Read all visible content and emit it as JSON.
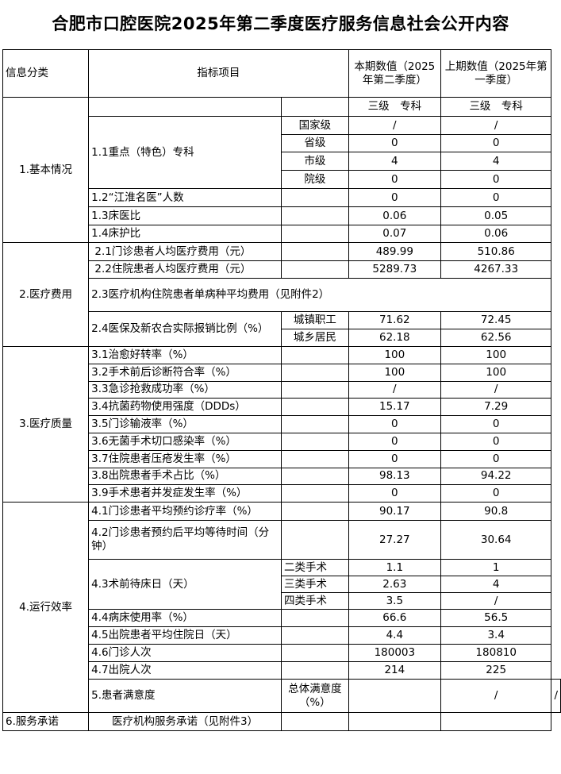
{
  "title": "合肥市口腔医院2025年第二季度医疗服务信息社会公开内容",
  "header": {
    "category": "信息分类",
    "indicator": "指标项目",
    "current": "本期数值（2025年第二季度）",
    "previous": "上期数值（2025年第一季度）",
    "level_current": "三级　专科",
    "level_previous": "三级　专科"
  },
  "sections": {
    "s1": "1.基本情况",
    "s2": "2.医疗费用",
    "s3": "3.医疗质量",
    "s4": "4.运行效率",
    "s5": "5.患者满意度",
    "s6": "6.服务承诺"
  },
  "rows": {
    "r11": {
      "label": "1.1重点（特色）专科",
      "subs": [
        {
          "sub": "国家级",
          "cur": "/",
          "prev": "/"
        },
        {
          "sub": "省级",
          "cur": "0",
          "prev": "0"
        },
        {
          "sub": "市级",
          "cur": "4",
          "prev": "4"
        },
        {
          "sub": "院级",
          "cur": "0",
          "prev": "0"
        }
      ]
    },
    "r12": {
      "label": "1.2“江淮名医”人数",
      "cur": "0",
      "prev": "0"
    },
    "r13": {
      "label": "1.3床医比",
      "cur": "0.06",
      "prev": "0.05"
    },
    "r14": {
      "label": "1.4床护比",
      "cur": "0.07",
      "prev": "0.06"
    },
    "r21": {
      "label": " 2.1门诊患者人均医疗费用（元）",
      "cur": "489.99",
      "prev": "510.86"
    },
    "r22": {
      "label": " 2.2住院患者人均医疗费用（元）",
      "cur": "5289.73",
      "prev": "4267.33"
    },
    "r23": {
      "label": "2.3医疗机构住院患者单病种平均费用（见附件2）"
    },
    "r24": {
      "label": "2.4医保及新农合实际报销比例（%）",
      "subs": [
        {
          "sub": "城镇职工",
          "cur": "71.62",
          "prev": "72.45"
        },
        {
          "sub": "城乡居民",
          "cur": "62.18",
          "prev": "62.56"
        }
      ]
    },
    "r3": [
      {
        "label": "3.1治愈好转率（%）",
        "cur": "100",
        "prev": "100"
      },
      {
        "label": "3.2手术前后诊断符合率（%）",
        "cur": "100",
        "prev": "100"
      },
      {
        "label": "3.3急诊抢救成功率（%）",
        "cur": "/",
        "prev": "/"
      },
      {
        "label": "3.4抗菌药物使用强度（DDDs）",
        "cur": "15.17",
        "prev": "7.29"
      },
      {
        "label": "3.5门诊输液率（%）",
        "cur": "0",
        "prev": "0"
      },
      {
        "label": "3.6无菌手术切口感染率（%）",
        "cur": "0",
        "prev": "0"
      },
      {
        "label": "3.7住院患者压疮发生率（%）",
        "cur": "0",
        "prev": "0"
      },
      {
        "label": "3.8出院患者手术占比（%）",
        "cur": "98.13",
        "prev": "94.22"
      },
      {
        "label": "3.9手术患者并发症发生率（%）",
        "cur": "0",
        "prev": "0"
      }
    ],
    "r41": {
      "label": "4.1门诊患者平均预约诊疗率（%）",
      "cur": "90.17",
      "prev": "90.8"
    },
    "r42": {
      "label": "4.2门诊患者预约后平均等待时间（分钟）",
      "cur": "27.27",
      "prev": "30.64"
    },
    "r43": {
      "label": "4.3术前待床日（天）",
      "subs": [
        {
          "sub": "二类手术",
          "cur": "1.1",
          "prev": "1"
        },
        {
          "sub": "三类手术",
          "cur": "2.63",
          "prev": "4"
        },
        {
          "sub": "四类手术",
          "cur": "3.5",
          "prev": "/"
        }
      ]
    },
    "r44": {
      "label": "4.4病床使用率（%）",
      "cur": "66.6",
      "prev": "56.5"
    },
    "r45": {
      "label": "4.5出院患者平均住院日（天）",
      "cur": "4.4",
      "prev": "3.4"
    },
    "r46": {
      "label": "4.6门诊人次",
      "cur": "180003",
      "prev": "180810"
    },
    "r47": {
      "label": "4.7出院人次",
      "cur": "214",
      "prev": "225"
    },
    "r5": {
      "label": "总体满意度（%）",
      "cur": "/",
      "prev": "/"
    },
    "r6": {
      "label": "医疗机构服务承诺（见附件3）"
    }
  }
}
